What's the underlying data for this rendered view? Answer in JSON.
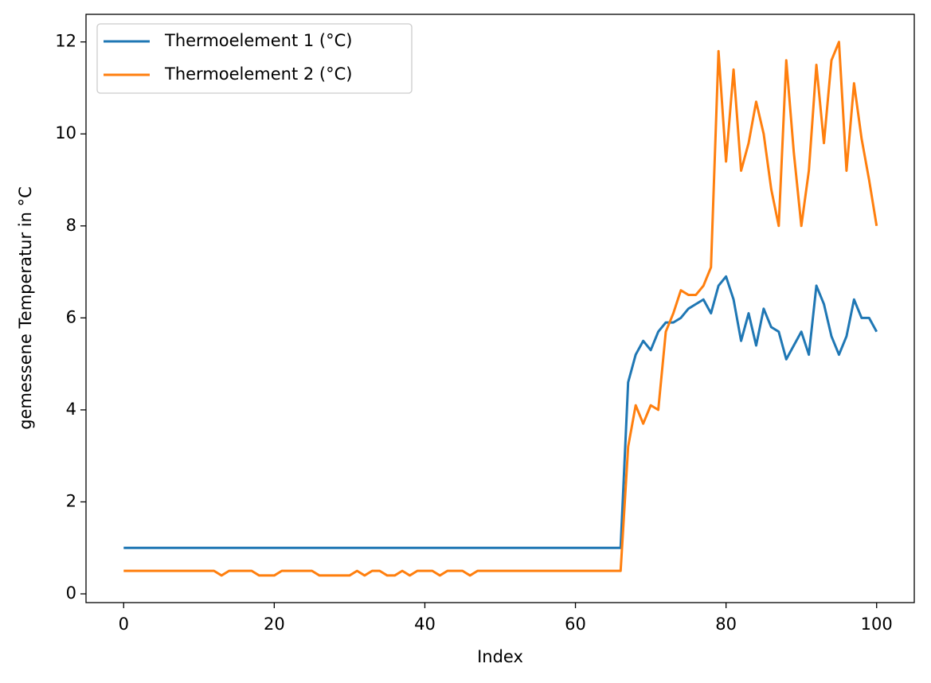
{
  "chart_data": {
    "type": "line",
    "xlabel": "Index",
    "ylabel": "gemessene Temperatur in °C",
    "x": [
      0,
      1,
      2,
      3,
      4,
      5,
      6,
      7,
      8,
      9,
      10,
      11,
      12,
      13,
      14,
      15,
      16,
      17,
      18,
      19,
      20,
      21,
      22,
      23,
      24,
      25,
      26,
      27,
      28,
      29,
      30,
      31,
      32,
      33,
      34,
      35,
      36,
      37,
      38,
      39,
      40,
      41,
      42,
      43,
      44,
      45,
      46,
      47,
      48,
      49,
      50,
      51,
      52,
      53,
      54,
      55,
      56,
      57,
      58,
      59,
      60,
      61,
      62,
      63,
      64,
      65,
      66,
      67,
      68,
      69,
      70,
      71,
      72,
      73,
      74,
      75,
      76,
      77,
      78,
      79,
      80,
      81,
      82,
      83,
      84,
      85,
      86,
      87,
      88,
      89,
      90,
      91,
      92,
      93,
      94,
      95,
      96,
      97,
      98,
      99,
      100
    ],
    "series": [
      {
        "name": "Thermoelement 1 (°C)",
        "color": "#1f77b4",
        "values": [
          1,
          1,
          1,
          1,
          1,
          1,
          1,
          1,
          1,
          1,
          1,
          1,
          1,
          1,
          1,
          1,
          1,
          1,
          1,
          1,
          1,
          1,
          1,
          1,
          1,
          1,
          1,
          1,
          1,
          1,
          1,
          1,
          1,
          1,
          1,
          1,
          1,
          1,
          1,
          1,
          1,
          1,
          1,
          1,
          1,
          1,
          1,
          1,
          1,
          1,
          1,
          1,
          1,
          1,
          1,
          1,
          1,
          1,
          1,
          1,
          1,
          1,
          1,
          1,
          1,
          1,
          1,
          4.6,
          5.2,
          5.5,
          5.3,
          5.7,
          5.9,
          5.9,
          6.0,
          6.2,
          6.3,
          6.4,
          6.1,
          6.7,
          6.9,
          6.4,
          5.5,
          6.1,
          5.4,
          6.2,
          5.8,
          5.7,
          5.1,
          5.4,
          5.7,
          5.2,
          6.7,
          6.3,
          5.6,
          5.2,
          5.6,
          6.4,
          6.0,
          6.0,
          5.7
        ]
      },
      {
        "name": "Thermoelement 2 (°C)",
        "color": "#ff7f0e",
        "values": [
          0.5,
          0.5,
          0.5,
          0.5,
          0.5,
          0.5,
          0.5,
          0.5,
          0.5,
          0.5,
          0.5,
          0.5,
          0.5,
          0.4,
          0.5,
          0.5,
          0.5,
          0.5,
          0.4,
          0.4,
          0.4,
          0.5,
          0.5,
          0.5,
          0.5,
          0.5,
          0.4,
          0.4,
          0.4,
          0.4,
          0.4,
          0.5,
          0.4,
          0.5,
          0.5,
          0.4,
          0.4,
          0.5,
          0.4,
          0.5,
          0.5,
          0.5,
          0.4,
          0.5,
          0.5,
          0.5,
          0.4,
          0.5,
          0.5,
          0.5,
          0.5,
          0.5,
          0.5,
          0.5,
          0.5,
          0.5,
          0.5,
          0.5,
          0.5,
          0.5,
          0.5,
          0.5,
          0.5,
          0.5,
          0.5,
          0.5,
          0.5,
          3.2,
          4.1,
          3.7,
          4.1,
          4.0,
          5.7,
          6.1,
          6.6,
          6.5,
          6.5,
          6.7,
          7.1,
          11.8,
          9.4,
          11.4,
          9.2,
          9.8,
          10.7,
          10.0,
          8.8,
          8.0,
          11.6,
          9.6,
          8.0,
          9.2,
          11.5,
          9.8,
          11.6,
          12.0,
          9.2,
          11.1,
          9.9,
          9.0,
          8.0
        ]
      }
    ],
    "xlim": [
      -5,
      105
    ],
    "xticks": [
      0,
      20,
      40,
      60,
      80,
      100
    ],
    "ylim": [
      -0.19,
      12.6
    ],
    "yticks": [
      0,
      2,
      4,
      6,
      8,
      10,
      12
    ],
    "legend": "upper left"
  }
}
